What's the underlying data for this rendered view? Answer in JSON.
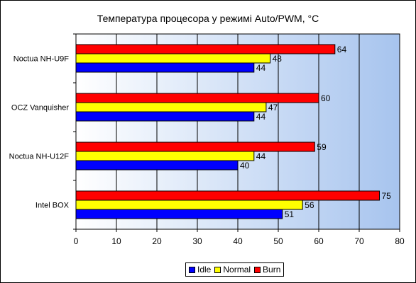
{
  "chart_data": {
    "type": "bar",
    "orientation": "horizontal",
    "title": "Температура процесора у режимі Auto/PWM, °С",
    "categories": [
      "Noctua NH-U9F",
      "OCZ Vanquisher",
      "Noctua NH-U12F",
      "Intel BOX"
    ],
    "series": [
      {
        "name": "Idle",
        "color": "#0000ff",
        "values": [
          44,
          44,
          40,
          51
        ]
      },
      {
        "name": "Normal",
        "color": "#ffff00",
        "values": [
          48,
          47,
          44,
          56
        ]
      },
      {
        "name": "Burn",
        "color": "#ff0000",
        "values": [
          64,
          60,
          59,
          75
        ]
      }
    ],
    "xlim": [
      0,
      80
    ],
    "xticks": [
      0,
      10,
      20,
      30,
      40,
      50,
      60,
      70,
      80
    ],
    "grid": true,
    "legend": "bottom",
    "plot_background": "gradient white to light blue"
  }
}
